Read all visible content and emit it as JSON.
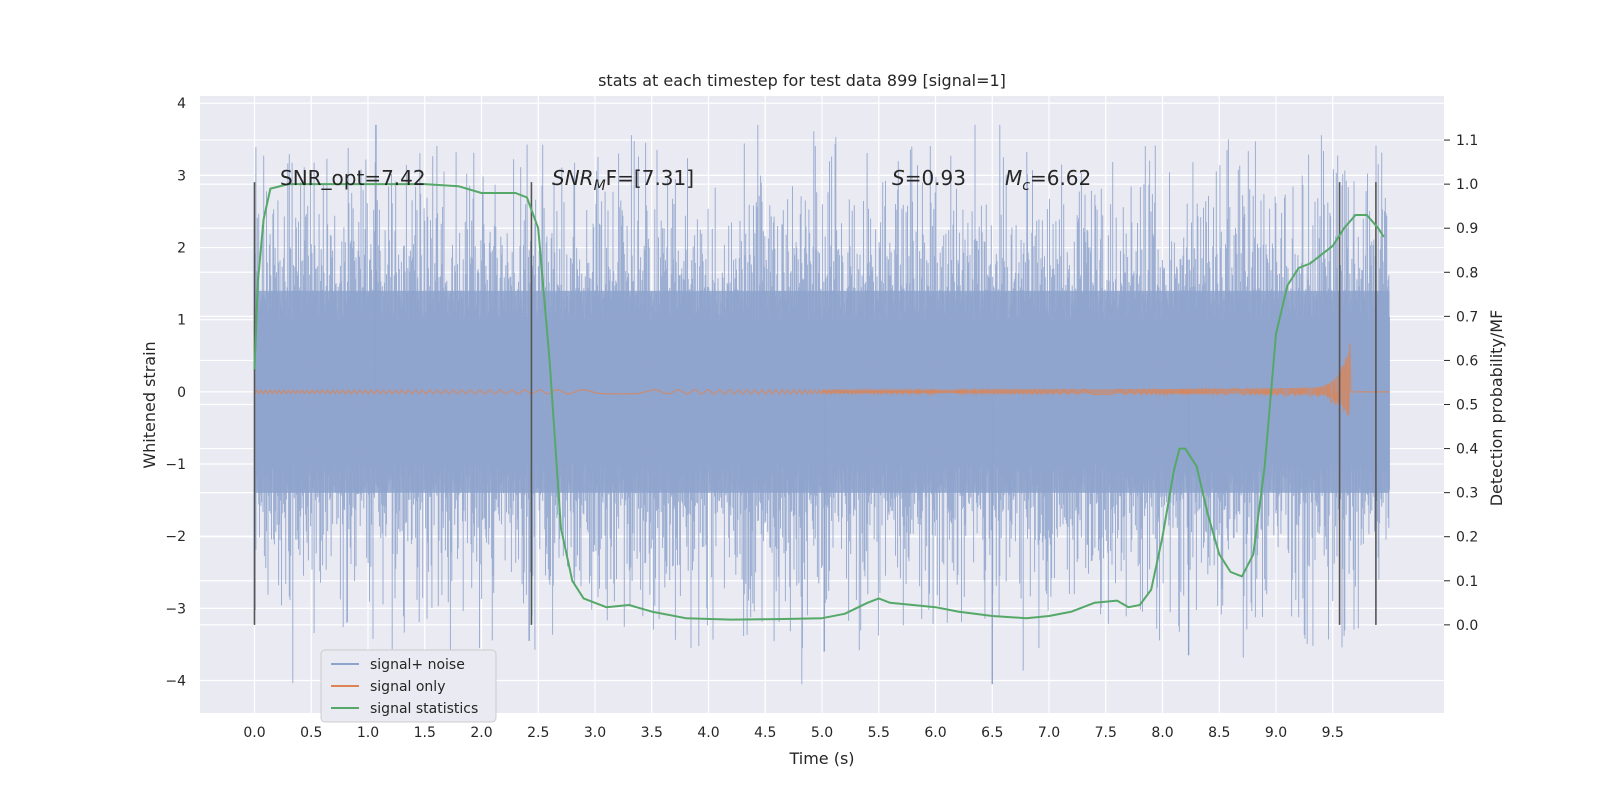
{
  "chart_data": {
    "type": "line",
    "title": "stats at each timestep for test data 899 [signal=1]",
    "xlabel": "Time (s)",
    "ylabel": "Whitened strain",
    "y2label": "Detection probability/MF",
    "xlim": [
      -0.48,
      10.48
    ],
    "ylim": [
      -4.45,
      4.1
    ],
    "y2lim": [
      -0.2,
      1.2
    ],
    "x_ticks": [
      "0.0",
      "0.5",
      "1.0",
      "1.5",
      "2.0",
      "2.5",
      "3.0",
      "3.5",
      "4.0",
      "4.5",
      "5.0",
      "5.5",
      "6.0",
      "6.5",
      "7.0",
      "7.5",
      "8.0",
      "8.5",
      "9.0",
      "9.5"
    ],
    "y_ticks": [
      "4",
      "3",
      "2",
      "1",
      "0",
      "−1",
      "−2",
      "−3",
      "−4"
    ],
    "y2_ticks": [
      "1.1",
      "1.0",
      "0.9",
      "0.8",
      "0.7",
      "0.6",
      "0.5",
      "0.4",
      "0.3",
      "0.2",
      "0.1",
      "0.0"
    ],
    "grid": true,
    "legend_position": "lower-left",
    "colors": {
      "background": "#eaeaf2",
      "grid": "#ffffff",
      "noise": "#8ea3cc",
      "signal": "#dd8452",
      "stats": "#55a868",
      "vline": "#555555"
    },
    "annotations": {
      "snr_opt": "SNR_opt=7.42",
      "snr_mf_label": "SNR",
      "snr_mf_sub": "M",
      "snr_mf_tail": "F=[7.31]",
      "s_label": "S",
      "s_value": "=0.93",
      "mc_label": "M",
      "mc_sub": "c",
      "mc_value": "=6.62"
    },
    "vertical_lines_x": [
      0.0,
      2.44,
      9.56,
      9.88
    ],
    "series": [
      {
        "name": "signal+ noise",
        "kind": "noise",
        "x_range": [
          0,
          10
        ],
        "envelope_sigma": 1,
        "extremes": [
          3.7,
          -4.05
        ]
      },
      {
        "name": "signal only",
        "kind": "chirp",
        "x_range": [
          0,
          10
        ],
        "peak_x": 9.65,
        "peak_amplitude": 1.0
      },
      {
        "name": "signal statistics",
        "kind": "stats",
        "x": [
          0.0,
          0.03,
          0.08,
          0.14,
          0.3,
          0.6,
          1.0,
          1.5,
          1.8,
          2.0,
          2.1,
          2.3,
          2.4,
          2.5,
          2.6,
          2.7,
          2.8,
          2.9,
          3.1,
          3.3,
          3.5,
          3.8,
          4.2,
          4.6,
          5.0,
          5.2,
          5.4,
          5.5,
          5.6,
          5.8,
          6.0,
          6.2,
          6.5,
          6.8,
          7.0,
          7.2,
          7.4,
          7.6,
          7.7,
          7.8,
          7.9,
          8.0,
          8.1,
          8.15,
          8.2,
          8.3,
          8.4,
          8.5,
          8.6,
          8.7,
          8.8,
          8.9,
          9.0,
          9.1,
          9.2,
          9.3,
          9.4,
          9.5,
          9.6,
          9.7,
          9.8,
          9.9,
          9.95
        ],
        "y": [
          0.58,
          0.78,
          0.92,
          0.99,
          1.0,
          1.0,
          1.0,
          1.0,
          0.995,
          0.98,
          0.98,
          0.98,
          0.97,
          0.9,
          0.6,
          0.22,
          0.1,
          0.06,
          0.04,
          0.045,
          0.03,
          0.015,
          0.012,
          0.013,
          0.015,
          0.025,
          0.05,
          0.06,
          0.05,
          0.045,
          0.04,
          0.03,
          0.02,
          0.015,
          0.02,
          0.03,
          0.05,
          0.055,
          0.04,
          0.045,
          0.08,
          0.2,
          0.35,
          0.4,
          0.4,
          0.36,
          0.25,
          0.16,
          0.12,
          0.11,
          0.16,
          0.36,
          0.66,
          0.77,
          0.81,
          0.82,
          0.84,
          0.86,
          0.9,
          0.93,
          0.93,
          0.9,
          0.88
        ]
      }
    ]
  }
}
